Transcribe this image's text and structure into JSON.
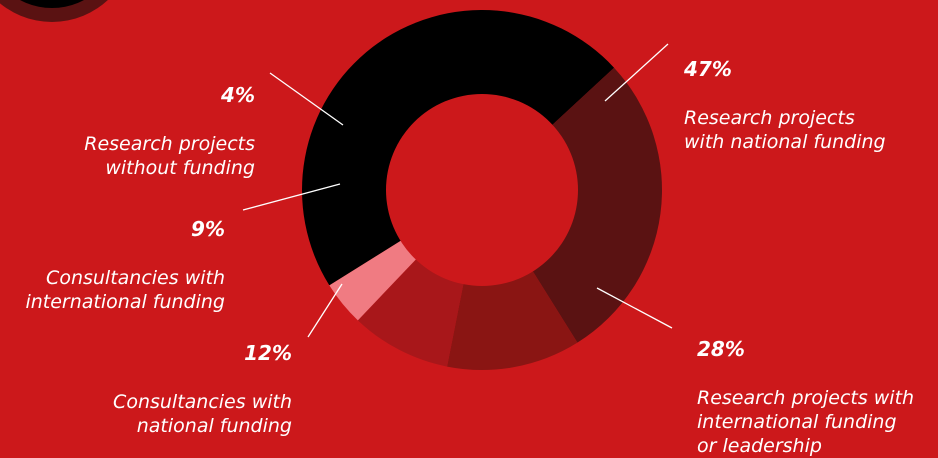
{
  "chart_data": {
    "type": "pie",
    "donut": true,
    "title": "",
    "categories": [
      "Research projects with national funding",
      "Research projects with international funding or leadership",
      "Consultancies with national funding",
      "Consultancies with international funding",
      "Research projects without funding"
    ],
    "values": [
      47,
      28,
      12,
      9,
      4
    ],
    "slices": [
      {
        "pct": "47%",
        "label": "Research projects\nwith national funding",
        "color": "#000000"
      },
      {
        "pct": "28%",
        "label": "Research projects with\ninternational funding\nor leadership",
        "color": "#5a1212"
      },
      {
        "pct": "12%",
        "label": "Consultancies with\nnational funding",
        "color": "#8a1513"
      },
      {
        "pct": "9%",
        "label": "Consultancies with\ninternational funding",
        "color": "#a8171a"
      },
      {
        "pct": "4%",
        "label": "Research projects\nwithout funding",
        "color": "#f07b82"
      }
    ],
    "colors": {
      "background": "#cc181b",
      "hole": "#cc181b",
      "leader": "#ffffff"
    }
  }
}
